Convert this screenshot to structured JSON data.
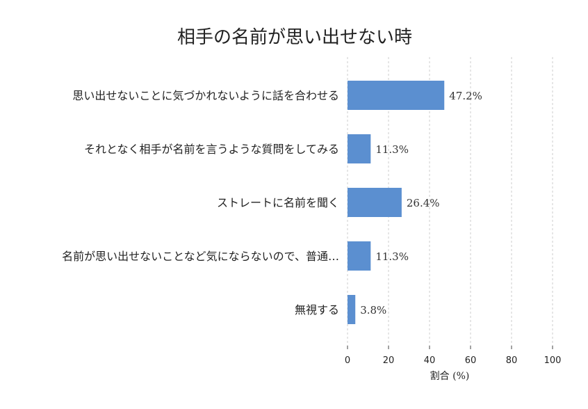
{
  "colors": {
    "bar": "#5b8fd0"
  },
  "chart_data": {
    "type": "bar",
    "orientation": "horizontal",
    "title": "相手の名前が思い出せない時",
    "xlabel": "割合 (%)",
    "ylabel": "",
    "categories": [
      "思い出せないことに気づかれないように話を合わせる",
      "それとなく相手が名前を言うような質問をしてみる",
      "ストレートに名前を聞く",
      "名前が思い出せないことなど気にならないので、普通…",
      "無視する"
    ],
    "values": [
      47.2,
      11.3,
      26.4,
      11.3,
      3.8
    ],
    "value_labels": [
      "47.2%",
      "11.3%",
      "26.4%",
      "11.3%",
      "3.8%"
    ],
    "xlim": [
      0,
      100
    ],
    "xticks": [
      0,
      20,
      40,
      60,
      80,
      100
    ],
    "xtick_labels": [
      "0",
      "20",
      "40",
      "60",
      "80",
      "100"
    ],
    "grid": true
  }
}
